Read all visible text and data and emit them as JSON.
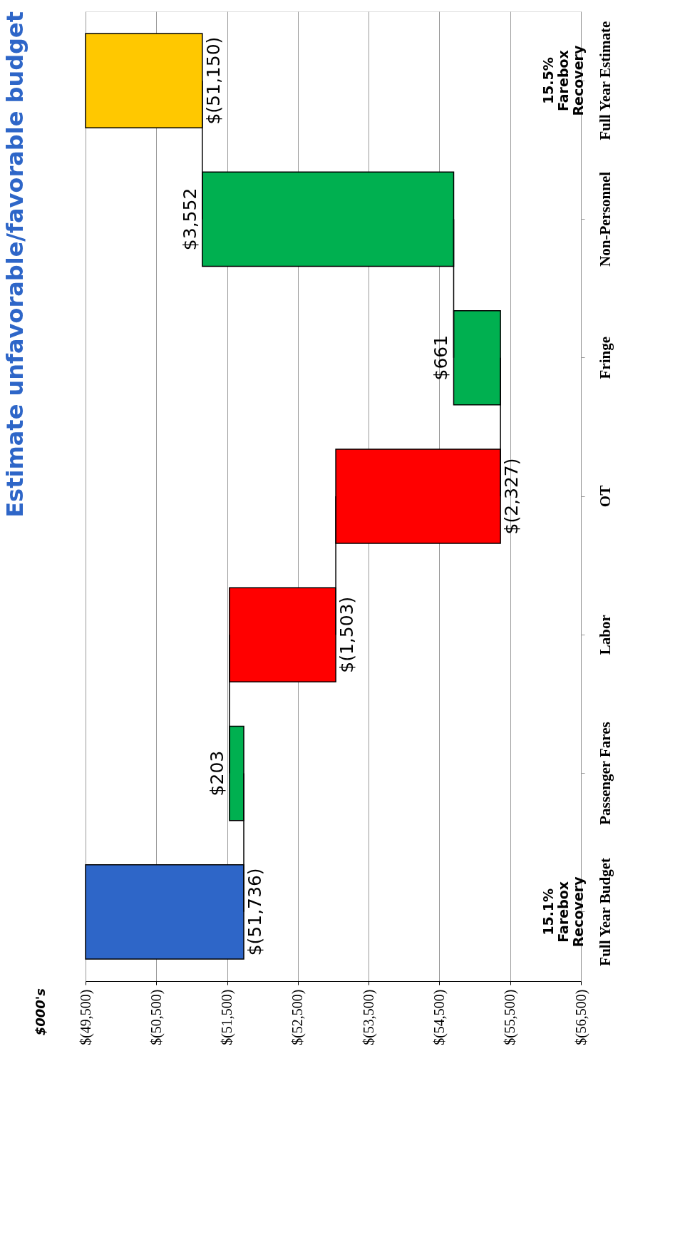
{
  "chart_data": {
    "type": "bar",
    "orientation": "horizontal",
    "title": "Estimate unfavorable/favorable budget",
    "categories": [
      "Full Year Estimate",
      "Non-Personnel",
      "Fringe",
      "OT",
      "Labor",
      "Passenger Fares",
      "Full Year Budget"
    ],
    "values": [
      -51150,
      3552,
      661,
      -2327,
      -1503,
      203,
      -51736
    ],
    "base": [
      null,
      -54702,
      -55363,
      -53036,
      -51533,
      -51736,
      null
    ],
    "colors": [
      "#ffc800",
      "#00b050",
      "#00b050",
      "#ff0000",
      "#ff0000",
      "#00b050",
      "#2e66c8"
    ],
    "value_labels": [
      "$(51,150)",
      "$3,552",
      "$661",
      "$(2,327)",
      "$(1,503)",
      "$203",
      "$(51,736)"
    ],
    "xlim": [
      -49500,
      -56500
    ],
    "xticks": [
      {
        "value": -49500,
        "label": "$(49,500)"
      },
      {
        "value": -50500,
        "label": "$(50,500)"
      },
      {
        "value": -51500,
        "label": "$(51,500)"
      },
      {
        "value": -52500,
        "label": "$(52,500)"
      },
      {
        "value": -53500,
        "label": "$(53,500)"
      },
      {
        "value": -54500,
        "label": "$(54,500)"
      },
      {
        "value": -55500,
        "label": "$(55,500)"
      },
      {
        "value": -56500,
        "label": "$(56,500)"
      }
    ],
    "grid": "x",
    "annotations": [
      "15.5% Farebox Recovery",
      "15.1% Farebox Recovery",
      "$000's"
    ]
  }
}
